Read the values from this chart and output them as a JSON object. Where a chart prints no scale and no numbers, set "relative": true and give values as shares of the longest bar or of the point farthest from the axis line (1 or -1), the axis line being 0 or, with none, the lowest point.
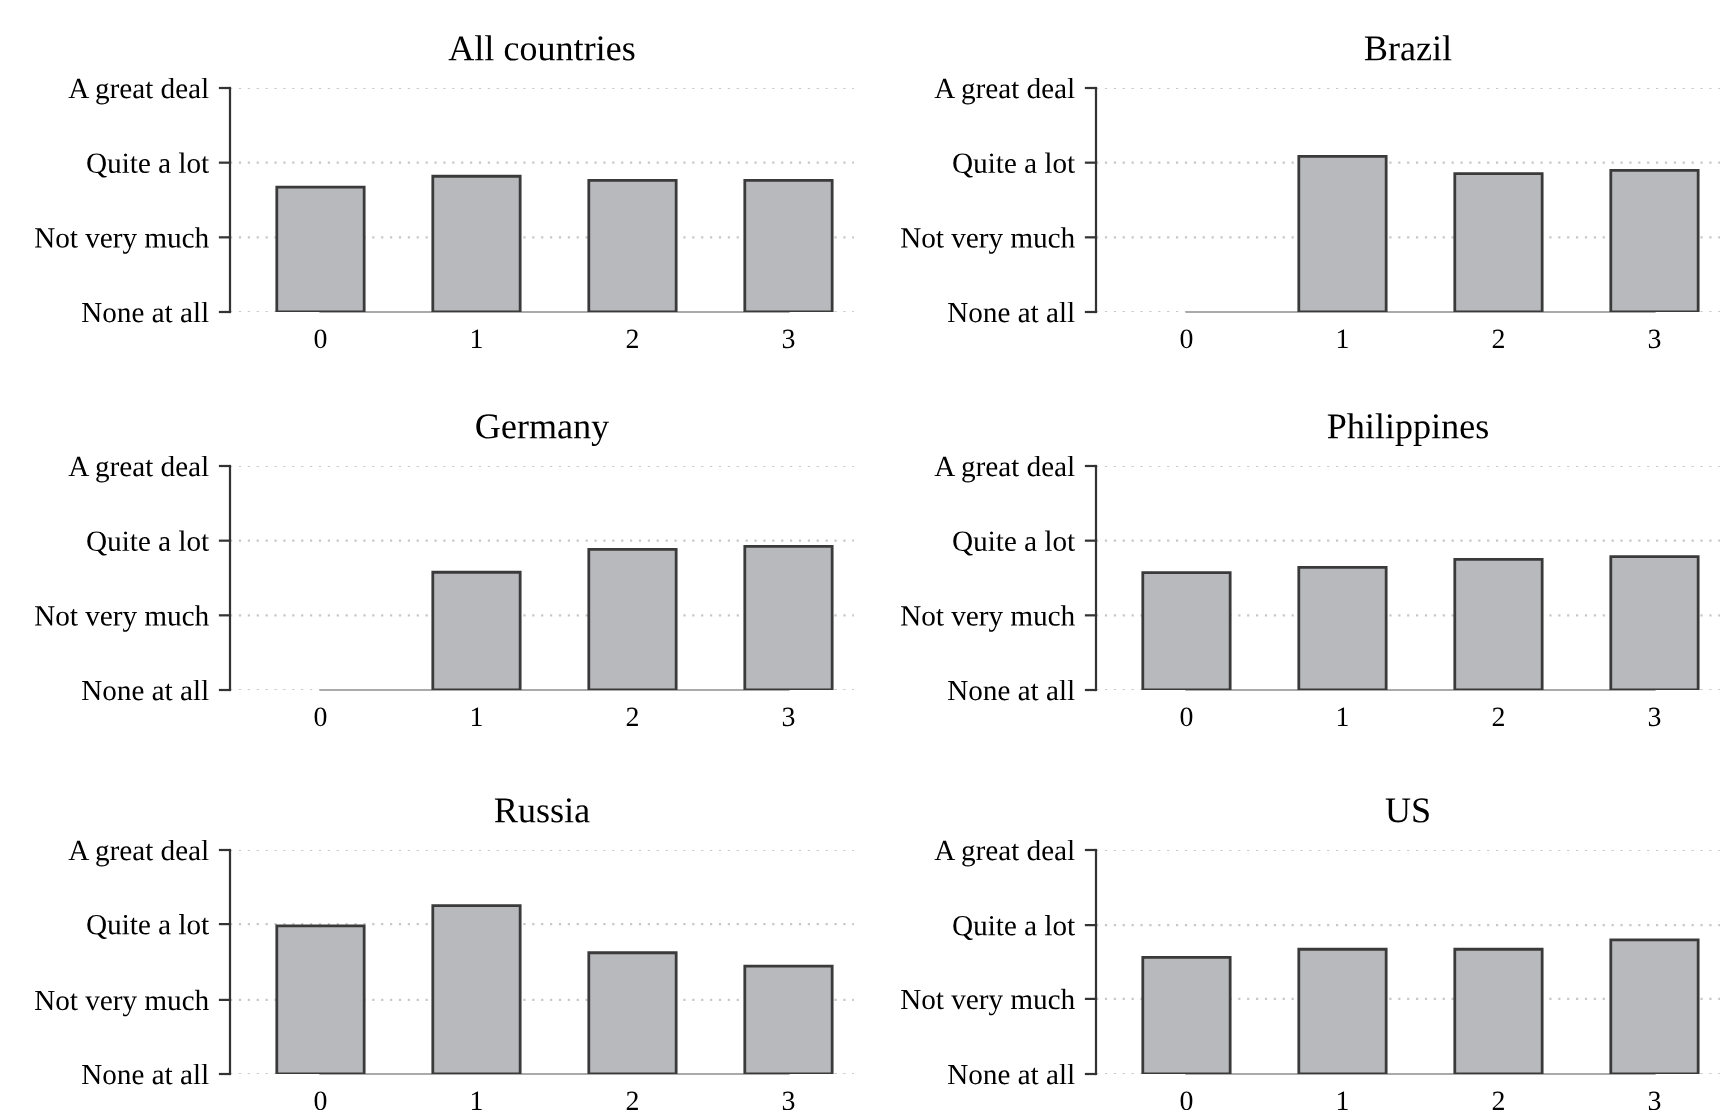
{
  "chart_data": [
    {
      "type": "bar",
      "relative": true,
      "title": "All countries",
      "categories": [
        "0",
        "1",
        "2",
        "3"
      ],
      "values": [
        0.92,
        1,
        0.97,
        0.97
      ],
      "color": "#b8b9bd",
      "ylim": [
        0,
        1.65
      ],
      "ref_lines": [
        {
          "axis": "y",
          "value": 0,
          "label": "None at all",
          "color": "#c8c8c8",
          "line_style": "dotted"
        },
        {
          "axis": "y",
          "value": 0.55,
          "label": "Not very much",
          "color": "#c8c8c8",
          "line_style": "dotted"
        },
        {
          "axis": "y",
          "value": 1.1,
          "label": "Quite a lot",
          "color": "#c8c8c8",
          "line_style": "dotted"
        },
        {
          "axis": "y",
          "value": 1.65,
          "label": "A great deal",
          "color": "#c8c8c8",
          "line_style": "dotted"
        }
      ]
    },
    {
      "type": "bar",
      "relative": true,
      "title": "Brazil",
      "categories": [
        "0",
        "1",
        "2",
        "3"
      ],
      "values": [
        null,
        1,
        0.89,
        0.91
      ],
      "color": "#b8b9bd",
      "ylim": [
        0,
        1.44
      ],
      "ref_lines": [
        {
          "axis": "y",
          "value": 0,
          "label": "None at all",
          "color": "#c8c8c8",
          "line_style": "dotted"
        },
        {
          "axis": "y",
          "value": 0.48,
          "label": "Not very much",
          "color": "#c8c8c8",
          "line_style": "dotted"
        },
        {
          "axis": "y",
          "value": 0.96,
          "label": "Quite a lot",
          "color": "#c8c8c8",
          "line_style": "dotted"
        },
        {
          "axis": "y",
          "value": 1.44,
          "label": "A great deal",
          "color": "#c8c8c8",
          "line_style": "dotted"
        }
      ]
    },
    {
      "type": "bar",
      "relative": true,
      "title": "Germany",
      "categories": [
        "0",
        "1",
        "2",
        "3"
      ],
      "values": [
        null,
        0.82,
        0.98,
        1
      ],
      "color": "#b8b9bd",
      "ylim": [
        0,
        1.56
      ],
      "ref_lines": [
        {
          "axis": "y",
          "value": 0,
          "label": "None at all",
          "color": "#c8c8c8",
          "line_style": "dotted"
        },
        {
          "axis": "y",
          "value": 0.52,
          "label": "Not very much",
          "color": "#c8c8c8",
          "line_style": "dotted"
        },
        {
          "axis": "y",
          "value": 1.04,
          "label": "Quite a lot",
          "color": "#c8c8c8",
          "line_style": "dotted"
        },
        {
          "axis": "y",
          "value": 1.56,
          "label": "A great deal",
          "color": "#c8c8c8",
          "line_style": "dotted"
        }
      ]
    },
    {
      "type": "bar",
      "relative": true,
      "title": "Philippines",
      "categories": [
        "0",
        "1",
        "2",
        "3"
      ],
      "values": [
        0.88,
        0.92,
        0.98,
        1
      ],
      "color": "#b8b9bd",
      "ylim": [
        0,
        1.68
      ],
      "ref_lines": [
        {
          "axis": "y",
          "value": 0,
          "label": "None at all",
          "color": "#c8c8c8",
          "line_style": "dotted"
        },
        {
          "axis": "y",
          "value": 0.56,
          "label": "Not very much",
          "color": "#c8c8c8",
          "line_style": "dotted"
        },
        {
          "axis": "y",
          "value": 1.12,
          "label": "Quite a lot",
          "color": "#c8c8c8",
          "line_style": "dotted"
        },
        {
          "axis": "y",
          "value": 1.68,
          "label": "A great deal",
          "color": "#c8c8c8",
          "line_style": "dotted"
        }
      ]
    },
    {
      "type": "bar",
      "relative": true,
      "title": "Russia",
      "categories": [
        "0",
        "1",
        "2",
        "3"
      ],
      "values": [
        0.88,
        1,
        0.72,
        0.64
      ],
      "color": "#b8b9bd",
      "ylim": [
        0,
        1.33
      ],
      "ref_lines": [
        {
          "axis": "y",
          "value": 0,
          "label": "None at all",
          "color": "#c8c8c8",
          "line_style": "dotted"
        },
        {
          "axis": "y",
          "value": 0.44,
          "label": "Not very much",
          "color": "#c8c8c8",
          "line_style": "dotted"
        },
        {
          "axis": "y",
          "value": 0.89,
          "label": "Quite a lot",
          "color": "#c8c8c8",
          "line_style": "dotted"
        },
        {
          "axis": "y",
          "value": 1.33,
          "label": "A great deal",
          "color": "#c8c8c8",
          "line_style": "dotted"
        }
      ]
    },
    {
      "type": "bar",
      "relative": true,
      "title": "US",
      "categories": [
        "0",
        "1",
        "2",
        "3"
      ],
      "values": [
        0.87,
        0.93,
        0.93,
        1
      ],
      "color": "#b8b9bd",
      "ylim": [
        0,
        1.67
      ],
      "ref_lines": [
        {
          "axis": "y",
          "value": 0,
          "label": "None at all",
          "color": "#c8c8c8",
          "line_style": "dotted"
        },
        {
          "axis": "y",
          "value": 0.56,
          "label": "Not very much",
          "color": "#c8c8c8",
          "line_style": "dotted"
        },
        {
          "axis": "y",
          "value": 1.11,
          "label": "Quite a lot",
          "color": "#c8c8c8",
          "line_style": "dotted"
        },
        {
          "axis": "y",
          "value": 1.67,
          "label": "A great deal",
          "color": "#c8c8c8",
          "line_style": "dotted"
        }
      ]
    }
  ]
}
